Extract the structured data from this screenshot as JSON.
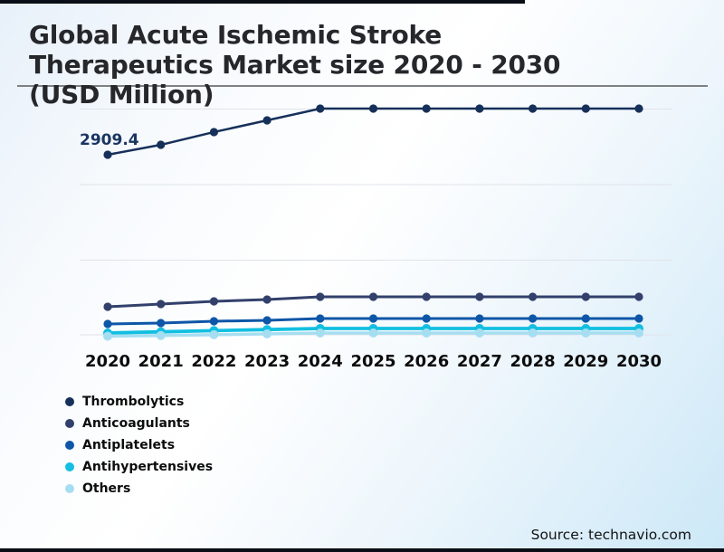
{
  "title": {
    "line1": "Global Acute Ischemic Stroke",
    "line2": "Therapeutics Market size 2020 - 2030",
    "line3": "(USD Million)"
  },
  "callout": {
    "text": "2909.4"
  },
  "source": {
    "text": "Source: technavio.com"
  },
  "chart_data": {
    "type": "line",
    "title": "Global Acute Ischemic Stroke Therapeutics Market size 2020 - 2030 (USD Million)",
    "categories": [
      "2020",
      "2021",
      "2022",
      "2023",
      "2024",
      "2025",
      "2026",
      "2027",
      "2028",
      "2029",
      "2030"
    ],
    "series": [
      {
        "name": "Thrombolytics",
        "color": "#16305a",
        "values": [
          2909.4,
          3062,
          3258,
          3438,
          3619,
          3619,
          3619,
          3619,
          3619,
          3619,
          3619
        ]
      },
      {
        "name": "Anticoagulants",
        "color": "#32406b",
        "values": [
          571,
          612,
          654,
          682,
          724,
          724,
          724,
          724,
          724,
          724,
          724
        ]
      },
      {
        "name": "Antiplatelets",
        "color": "#0e56a7",
        "values": [
          306,
          320,
          348,
          362,
          390,
          390,
          390,
          390,
          390,
          390,
          390
        ]
      },
      {
        "name": "Antihypertensives",
        "color": "#12bfe1",
        "values": [
          167,
          185,
          204,
          220,
          237,
          237,
          237,
          237,
          237,
          237,
          237
        ]
      },
      {
        "name": "Others",
        "color": "#a6def1",
        "values": [
          118,
          128,
          141,
          153,
          167,
          167,
          167,
          167,
          167,
          167,
          167
        ]
      }
    ],
    "annotations": [
      {
        "text": "2909.4",
        "series": "Thrombolytics",
        "category": "2020",
        "value": 2909.4
      }
    ],
    "ylim": [
      0,
      4000
    ],
    "y_axis_labels": "none (unlabeled horizontal gridlines)",
    "grid": "horizontal",
    "legend_position": "bottom-left",
    "units": "USD Million"
  }
}
